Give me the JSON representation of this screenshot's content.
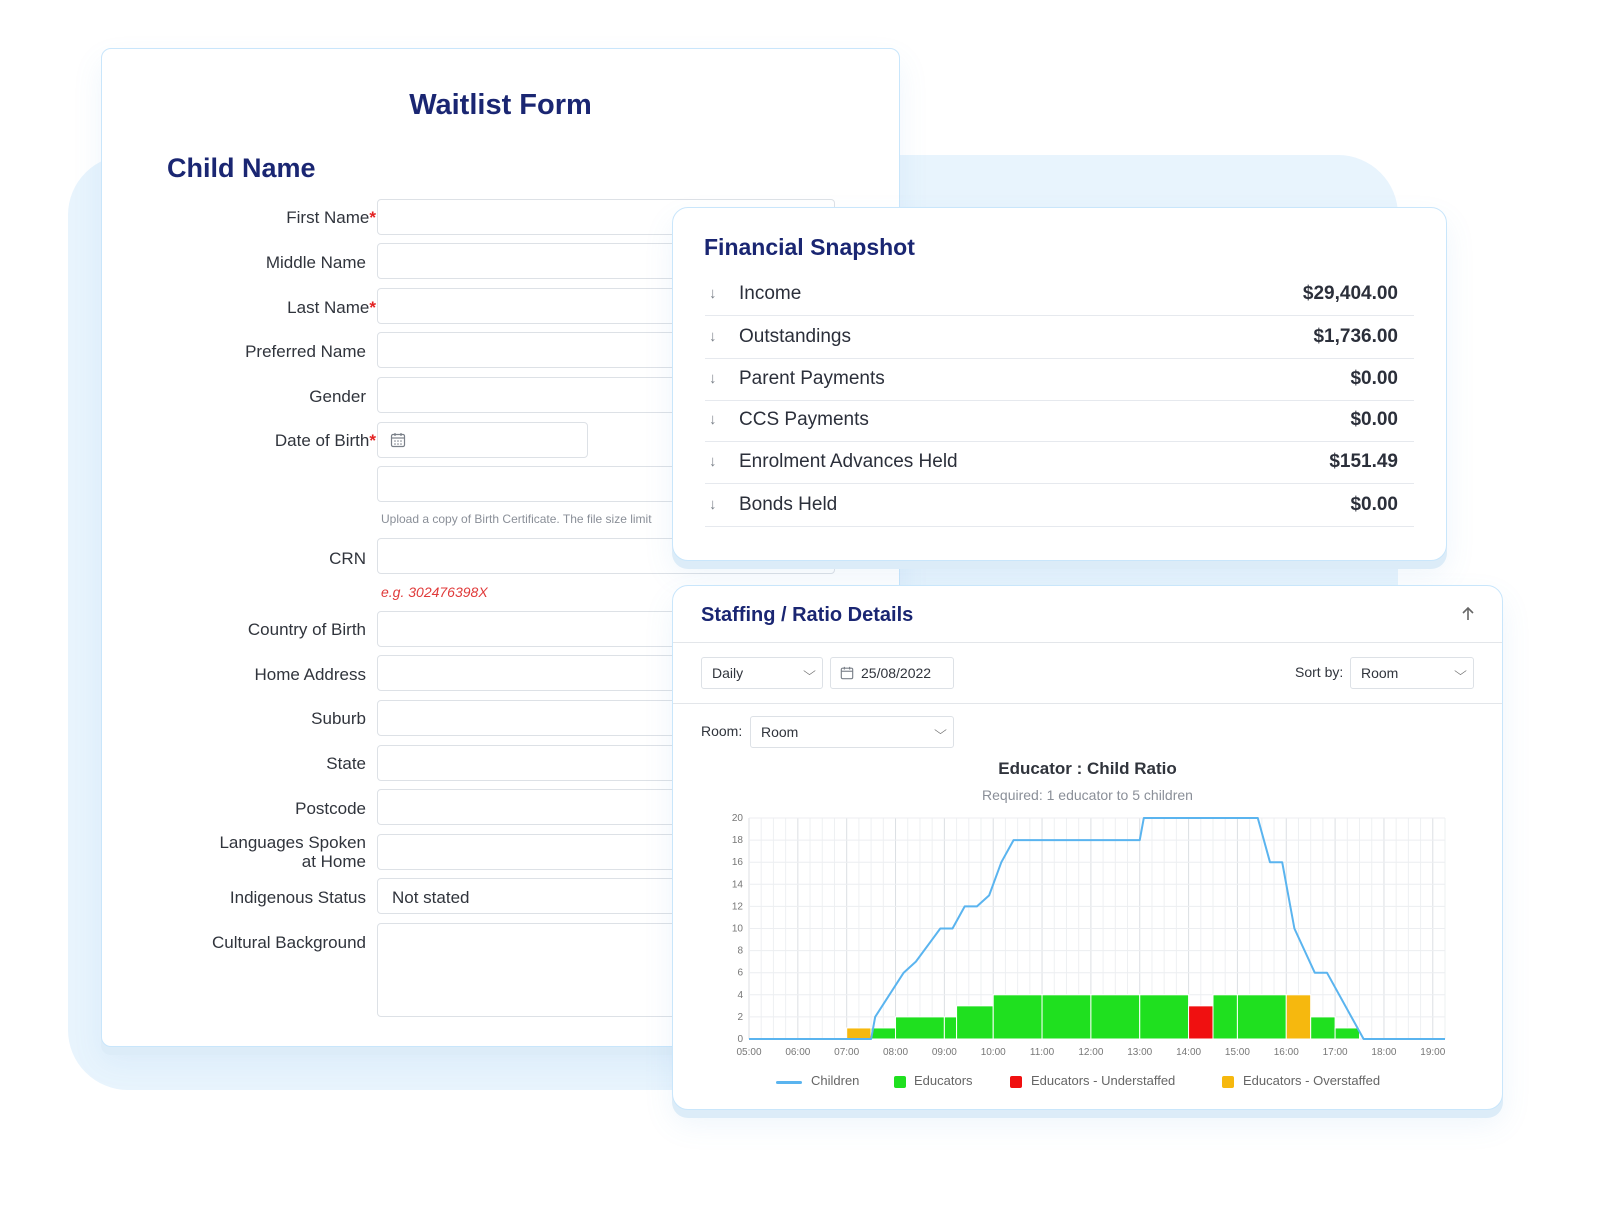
{
  "waitlist": {
    "form_title": "Waitlist Form",
    "section_title": "Child Name",
    "fields": {
      "first_name": "First Name",
      "middle_name": "Middle Name",
      "last_name": "Last Name",
      "preferred_name": "Preferred Name",
      "gender": "Gender",
      "dob": "Date of Birth",
      "crn": "CRN",
      "country_of_birth": "Country of Birth",
      "home_address": "Home Address",
      "suburb": "Suburb",
      "state": "State",
      "postcode": "Postcode",
      "languages_1": "Languages Spoken",
      "languages_2": "at Home",
      "indigenous": "Indigenous Status",
      "cultural": "Cultural Background"
    },
    "required_mark": "*",
    "upload_hint": "Upload a copy of Birth Certificate. The file size limit",
    "crn_hint": "e.g. 302476398X",
    "indigenous_value": "Not stated"
  },
  "financial": {
    "title": "Financial Snapshot",
    "rows": [
      {
        "label": "Income",
        "value": "$29,404.00"
      },
      {
        "label": "Outstandings",
        "value": "$1,736.00"
      },
      {
        "label": "Parent Payments",
        "value": "$0.00"
      },
      {
        "label": "CCS Payments",
        "value": "$0.00"
      },
      {
        "label": "Enrolment Advances Held",
        "value": "$151.49"
      },
      {
        "label": "Bonds Held",
        "value": "$0.00"
      }
    ],
    "row_icon": "arrow-down-icon"
  },
  "staffing": {
    "title": "Staffing / Ratio Details",
    "collapse_icon": "arrow-up-icon",
    "period": "Daily",
    "date": "25/08/2022",
    "sort_label": "Sort by:",
    "sort_value": "Room",
    "room_label": "Room:",
    "room_value": "Room"
  },
  "colors": {
    "children": "#5ab4ef",
    "educators": "#1fe01f",
    "understaffed": "#f01010",
    "overstaffed": "#f6b80e",
    "title_navy": "#1a2672"
  },
  "chart_data": {
    "type": "bar",
    "title": "Educator : Child Ratio",
    "subtitle": "Required: 1 educator to 5 children",
    "x_ticks": [
      "05:00",
      "06:00",
      "07:00",
      "08:00",
      "09:00",
      "10:00",
      "11:00",
      "12:00",
      "13:00",
      "14:00",
      "15:00",
      "16:00",
      "17:00",
      "18:00",
      "19:00"
    ],
    "y_ticks": [
      0,
      2,
      4,
      6,
      8,
      10,
      12,
      14,
      16,
      18,
      20
    ],
    "ylim": [
      0,
      20
    ],
    "x_range_hours": [
      5,
      19.25
    ],
    "legend_position": "bottom",
    "grid": true,
    "legend": [
      "Children",
      "Educators",
      "Educators - Understaffed",
      "Educators - Overstaffed"
    ],
    "educator_bars": [
      {
        "start": "07:00",
        "end": "07:30",
        "value": 1,
        "status": "overstaffed"
      },
      {
        "start": "07:30",
        "end": "08:00",
        "value": 1,
        "status": "educators"
      },
      {
        "start": "08:00",
        "end": "09:00",
        "value": 2,
        "status": "educators"
      },
      {
        "start": "09:00",
        "end": "09:15",
        "value": 2,
        "status": "educators"
      },
      {
        "start": "09:15",
        "end": "10:00",
        "value": 3,
        "status": "educators"
      },
      {
        "start": "10:00",
        "end": "11:00",
        "value": 4,
        "status": "educators"
      },
      {
        "start": "11:00",
        "end": "12:00",
        "value": 4,
        "status": "educators"
      },
      {
        "start": "12:00",
        "end": "13:00",
        "value": 4,
        "status": "educators"
      },
      {
        "start": "13:00",
        "end": "14:00",
        "value": 4,
        "status": "educators"
      },
      {
        "start": "14:00",
        "end": "14:30",
        "value": 3,
        "status": "understaffed"
      },
      {
        "start": "14:30",
        "end": "15:00",
        "value": 4,
        "status": "educators"
      },
      {
        "start": "15:00",
        "end": "16:00",
        "value": 4,
        "status": "educators"
      },
      {
        "start": "16:00",
        "end": "16:30",
        "value": 4,
        "status": "overstaffed"
      },
      {
        "start": "16:30",
        "end": "17:00",
        "value": 2,
        "status": "educators"
      },
      {
        "start": "17:00",
        "end": "17:30",
        "value": 1,
        "status": "educators"
      }
    ],
    "children_line": [
      {
        "x": "05:00",
        "y": 0
      },
      {
        "x": "07:30",
        "y": 0
      },
      {
        "x": "07:35",
        "y": 2
      },
      {
        "x": "08:10",
        "y": 6
      },
      {
        "x": "08:25",
        "y": 7
      },
      {
        "x": "08:45",
        "y": 9
      },
      {
        "x": "08:55",
        "y": 10
      },
      {
        "x": "09:10",
        "y": 10
      },
      {
        "x": "09:25",
        "y": 12
      },
      {
        "x": "09:40",
        "y": 12
      },
      {
        "x": "09:55",
        "y": 13
      },
      {
        "x": "10:10",
        "y": 16
      },
      {
        "x": "10:25",
        "y": 18
      },
      {
        "x": "13:00",
        "y": 18
      },
      {
        "x": "13:05",
        "y": 20
      },
      {
        "x": "15:25",
        "y": 20
      },
      {
        "x": "15:40",
        "y": 16
      },
      {
        "x": "15:55",
        "y": 16
      },
      {
        "x": "16:10",
        "y": 10
      },
      {
        "x": "16:35",
        "y": 6
      },
      {
        "x": "16:50",
        "y": 6
      },
      {
        "x": "17:35",
        "y": 0
      },
      {
        "x": "19:15",
        "y": 0
      }
    ]
  }
}
